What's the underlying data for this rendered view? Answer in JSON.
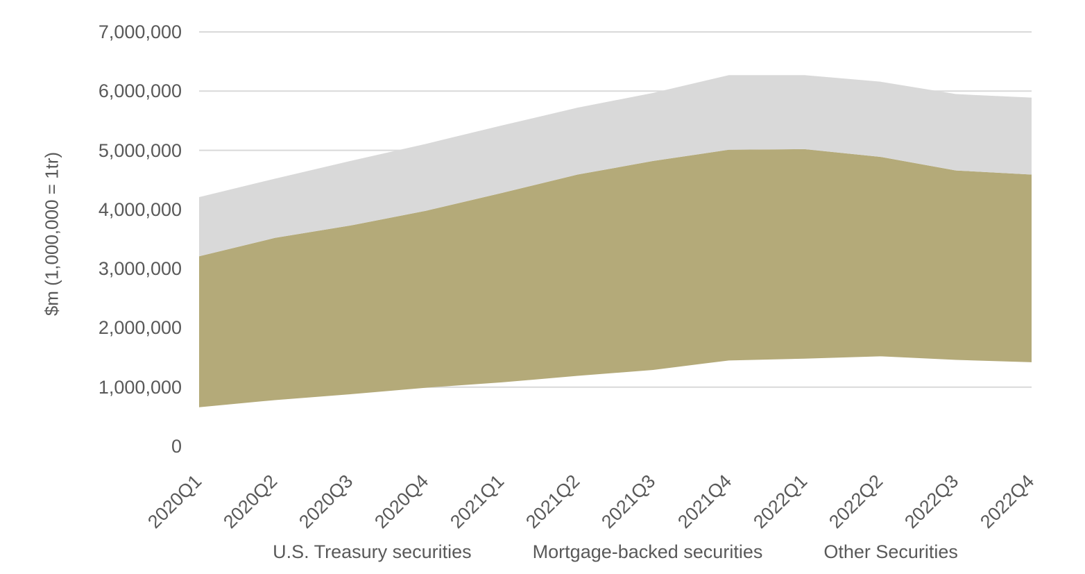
{
  "chart_data": {
    "type": "area",
    "stacked": true,
    "title": "",
    "xlabel": "",
    "ylabel": "$m (1,000,000 = 1tr)",
    "categories": [
      "2020Q1",
      "2020Q2",
      "2020Q3",
      "2020Q4",
      "2021Q1",
      "2021Q2",
      "2021Q3",
      "2021Q4",
      "2022Q1",
      "2022Q2",
      "2022Q3",
      "2022Q4"
    ],
    "series": [
      {
        "name": "U.S. Treasury securities",
        "color": "none",
        "values": [
          660000,
          780000,
          880000,
          990000,
          1080000,
          1190000,
          1290000,
          1450000,
          1480000,
          1520000,
          1460000,
          1420000
        ]
      },
      {
        "name": "Mortgage-backed securities",
        "color": "#b4aa79",
        "values": [
          2550000,
          2740000,
          2850000,
          2990000,
          3200000,
          3400000,
          3530000,
          3560000,
          3540000,
          3370000,
          3200000,
          3170000
        ]
      },
      {
        "name": "Other Securities",
        "color": "#d9d9d9",
        "values": [
          1000000,
          1000000,
          1090000,
          1130000,
          1140000,
          1130000,
          1150000,
          1260000,
          1250000,
          1270000,
          1290000,
          1300000
        ]
      }
    ],
    "ylim": [
      0,
      7000000
    ],
    "y_ticks": [
      {
        "label": "0",
        "value": 0
      },
      {
        "label": "1,000,000",
        "value": 1000000
      },
      {
        "label": "2,000,000",
        "value": 2000000
      },
      {
        "label": "3,000,000",
        "value": 3000000
      },
      {
        "label": "4,000,000",
        "value": 4000000
      },
      {
        "label": "5,000,000",
        "value": 5000000
      },
      {
        "label": "6,000,000",
        "value": 6000000
      },
      {
        "label": "7,000,000",
        "value": 7000000
      }
    ],
    "grid": true,
    "gridline_color": "#d9d9d9",
    "text_color": "#595959",
    "legend_position": "bottom",
    "x_tick_rotation_deg": 45
  }
}
